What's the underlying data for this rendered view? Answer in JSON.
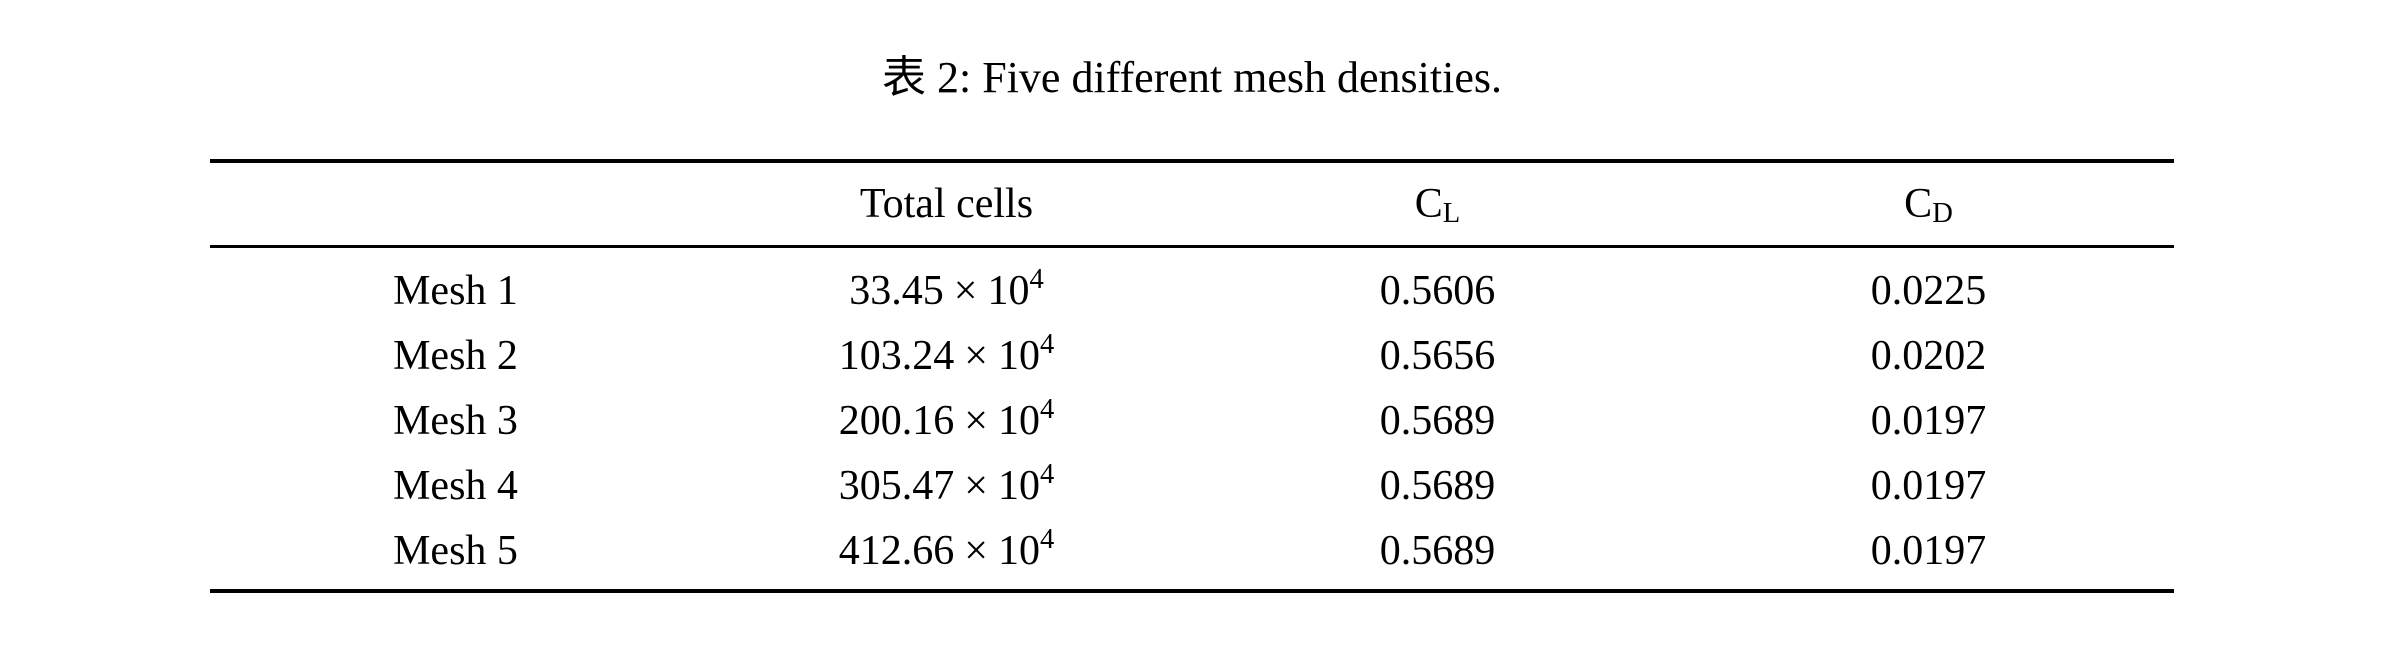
{
  "page": {
    "background_color": "#ffffff",
    "text_color": "#000000"
  },
  "caption": {
    "text": "表 2: Five different mesh densities."
  },
  "table": {
    "headers": {
      "mesh": "",
      "total_cells": "Total cells",
      "cl_base": "C",
      "cl_sub": "L",
      "cd_base": "C",
      "cd_sub": "D"
    },
    "symbols": {
      "times": "×",
      "power_base": "10",
      "power_exponent": "4"
    },
    "rows": [
      {
        "name": "Mesh 1",
        "total_cells_coeff": "33.45",
        "cl": "0.5606",
        "cd": "0.0225"
      },
      {
        "name": "Mesh 2",
        "total_cells_coeff": "103.24",
        "cl": "0.5656",
        "cd": "0.0202"
      },
      {
        "name": "Mesh 3",
        "total_cells_coeff": "200.16",
        "cl": "0.5689",
        "cd": "0.0197"
      },
      {
        "name": "Mesh 4",
        "total_cells_coeff": "305.47",
        "cl": "0.5689",
        "cd": "0.0197"
      },
      {
        "name": "Mesh 5",
        "total_cells_coeff": "412.66",
        "cl": "0.5689",
        "cd": "0.0197"
      }
    ]
  }
}
